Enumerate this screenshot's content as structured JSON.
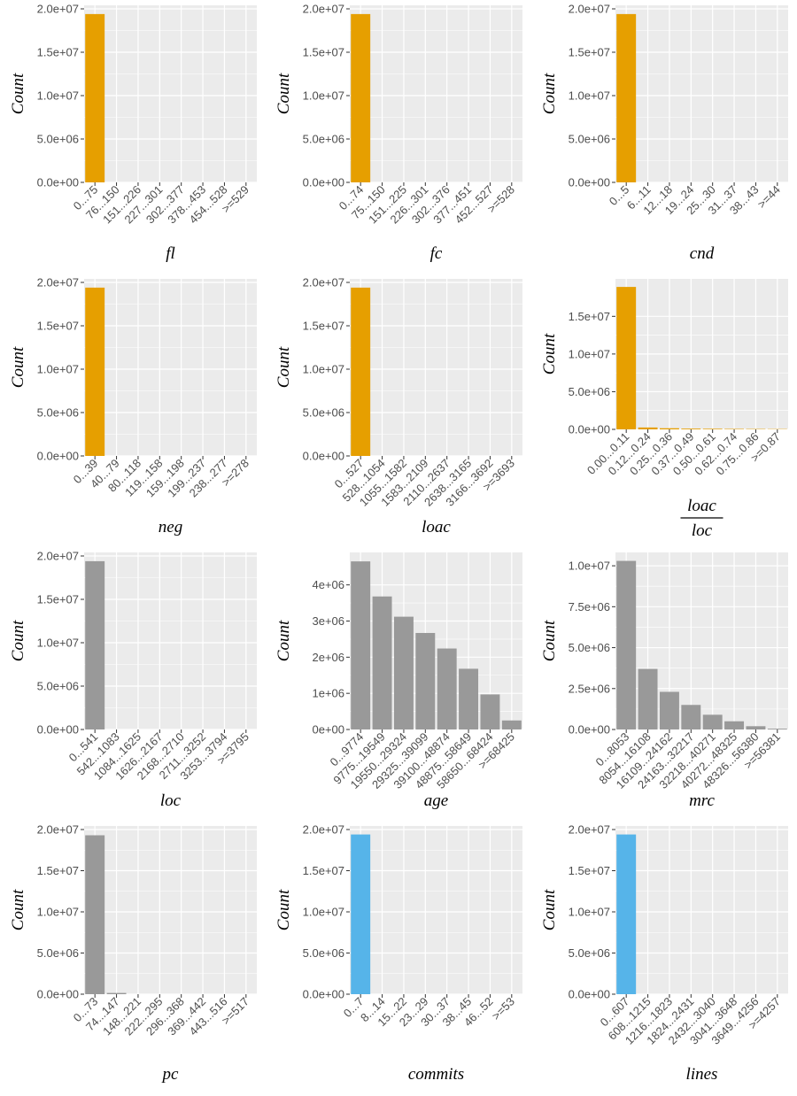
{
  "ylabel": "Count",
  "colors": {
    "orange": "#E69F00",
    "gray": "#999999",
    "blue": "#56B4E9",
    "panel_bg": "#EBEBEB",
    "grid": "#FFFFFF"
  },
  "chart_data": [
    {
      "type": "bar",
      "xlabel": "fl",
      "ylabel": "Count",
      "color": "#E69F00",
      "categories": [
        "0...75",
        "76...150",
        "151...226",
        "227...301",
        "302...377",
        "378...453",
        "454...528",
        ">=529"
      ],
      "values": [
        19400000,
        0,
        0,
        0,
        0,
        0,
        0,
        0
      ],
      "ylim": [
        0,
        20000000
      ],
      "yticks": [
        0,
        5000000,
        10000000,
        15000000,
        20000000
      ],
      "ytick_labels": [
        "0.0e+00",
        "5.0e+06",
        "1.0e+07",
        "1.5e+07",
        "2.0e+07"
      ]
    },
    {
      "type": "bar",
      "xlabel": "fc",
      "ylabel": "Count",
      "color": "#E69F00",
      "categories": [
        "0...74",
        "75...150",
        "151...225",
        "226...301",
        "302...376",
        "377...451",
        "452...527",
        ">=528"
      ],
      "values": [
        19400000,
        0,
        0,
        0,
        0,
        0,
        0,
        0
      ],
      "ylim": [
        0,
        20000000
      ],
      "yticks": [
        0,
        5000000,
        10000000,
        15000000,
        20000000
      ],
      "ytick_labels": [
        "0.0e+00",
        "5.0e+06",
        "1.0e+07",
        "1.5e+07",
        "2.0e+07"
      ]
    },
    {
      "type": "bar",
      "xlabel": "cnd",
      "ylabel": "Count",
      "color": "#E69F00",
      "categories": [
        "0...5",
        "6...11",
        "12...18",
        "19...24",
        "25...30",
        "31...37",
        "38...43",
        ">=44"
      ],
      "values": [
        19400000,
        0,
        0,
        0,
        0,
        0,
        0,
        0
      ],
      "ylim": [
        0,
        20000000
      ],
      "yticks": [
        0,
        5000000,
        10000000,
        15000000,
        20000000
      ],
      "ytick_labels": [
        "0.0e+00",
        "5.0e+06",
        "1.0e+07",
        "1.5e+07",
        "2.0e+07"
      ]
    },
    {
      "type": "bar",
      "xlabel": "neg",
      "ylabel": "Count",
      "color": "#E69F00",
      "categories": [
        "0...39",
        "40...79",
        "80...118",
        "119...158",
        "159...198",
        "199...237",
        "238...277",
        ">=278"
      ],
      "values": [
        19400000,
        0,
        0,
        0,
        0,
        0,
        0,
        0
      ],
      "ylim": [
        0,
        20000000
      ],
      "yticks": [
        0,
        5000000,
        10000000,
        15000000,
        20000000
      ],
      "ytick_labels": [
        "0.0e+00",
        "5.0e+06",
        "1.0e+07",
        "1.5e+07",
        "2.0e+07"
      ]
    },
    {
      "type": "bar",
      "xlabel": "loac",
      "ylabel": "Count",
      "color": "#E69F00",
      "categories": [
        "0...527",
        "528...1054",
        "1055...1582",
        "1583...2109",
        "2110...2637",
        "2638...3165",
        "3166...3692",
        ">=3693"
      ],
      "values": [
        19400000,
        0,
        0,
        0,
        0,
        0,
        0,
        0
      ],
      "ylim": [
        0,
        20000000
      ],
      "yticks": [
        0,
        5000000,
        10000000,
        15000000,
        20000000
      ],
      "ytick_labels": [
        "0.0e+00",
        "5.0e+06",
        "1.0e+07",
        "1.5e+07",
        "2.0e+07"
      ]
    },
    {
      "type": "bar",
      "xlabel": "loac",
      "xlabel_denominator": "loc",
      "ylabel": "Count",
      "color": "#E69F00",
      "categories": [
        "0.00...0.11",
        "0.12...0.24",
        "0.25...0.36",
        "0.37...0.49",
        "0.50...0.61",
        "0.62...0.74",
        "0.75...0.86",
        ">=0.87"
      ],
      "values": [
        18900000,
        250000,
        150000,
        100000,
        80000,
        60000,
        50000,
        40000
      ],
      "ylim": [
        0,
        19500000
      ],
      "yticks": [
        0,
        5000000,
        10000000,
        15000000
      ],
      "ytick_labels": [
        "0.0e+00",
        "5.0e+06",
        "1.0e+07",
        "1.5e+07"
      ]
    },
    {
      "type": "bar",
      "xlabel": "loc",
      "ylabel": "Count",
      "color": "#999999",
      "categories": [
        "0...541",
        "542...1083",
        "1084...1625",
        "1626...2167",
        "2168...2710",
        "2711...3252",
        "3253...3794",
        ">=3795"
      ],
      "values": [
        19400000,
        0,
        0,
        0,
        0,
        0,
        0,
        0
      ],
      "ylim": [
        0,
        20000000
      ],
      "yticks": [
        0,
        5000000,
        10000000,
        15000000,
        20000000
      ],
      "ytick_labels": [
        "0.0e+00",
        "5.0e+06",
        "1.0e+07",
        "1.5e+07",
        "2.0e+07"
      ]
    },
    {
      "type": "bar",
      "xlabel": "age",
      "ylabel": "Count",
      "color": "#999999",
      "categories": [
        "0...9774",
        "9775...19549",
        "19550...29324",
        "29325...39099",
        "39100...48874",
        "48875...58649",
        "58650...68424",
        ">=68425"
      ],
      "values": [
        4650000,
        3680000,
        3120000,
        2670000,
        2240000,
        1680000,
        970000,
        250000
      ],
      "ylim": [
        0,
        4800000
      ],
      "yticks": [
        0,
        1000000,
        2000000,
        3000000,
        4000000
      ],
      "ytick_labels": [
        "0e+00",
        "1e+06",
        "2e+06",
        "3e+06",
        "4e+06"
      ]
    },
    {
      "type": "bar",
      "xlabel": "mrc",
      "ylabel": "Count",
      "color": "#999999",
      "categories": [
        "0...8053",
        "8054...16108",
        "16109...24162",
        "24163...32217",
        "32218...40271",
        "40272...48325",
        "48326...56380",
        ">=56381"
      ],
      "values": [
        10300000,
        3700000,
        2300000,
        1500000,
        900000,
        500000,
        200000,
        50000
      ],
      "ylim": [
        0,
        10600000
      ],
      "yticks": [
        0,
        2500000,
        5000000,
        7500000,
        10000000
      ],
      "ytick_labels": [
        "0.0e+00",
        "2.5e+06",
        "5.0e+06",
        "7.5e+06",
        "1.0e+07"
      ]
    },
    {
      "type": "bar",
      "xlabel": "pc",
      "ylabel": "Count",
      "color": "#999999",
      "categories": [
        "0...73",
        "74...147",
        "148...221",
        "222...295",
        "296...368",
        "369...442",
        "443...516",
        ">=517"
      ],
      "values": [
        19300000,
        150000,
        0,
        0,
        0,
        0,
        0,
        0
      ],
      "ylim": [
        0,
        20000000
      ],
      "yticks": [
        0,
        5000000,
        10000000,
        15000000,
        20000000
      ],
      "ytick_labels": [
        "0.0e+00",
        "5.0e+06",
        "1.0e+07",
        "1.5e+07",
        "2.0e+07"
      ]
    },
    {
      "type": "bar",
      "xlabel": "commits",
      "ylabel": "Count",
      "color": "#56B4E9",
      "categories": [
        "0...7",
        "8...14",
        "15...22",
        "23...29",
        "30...37",
        "38...45",
        "46...52",
        ">=53"
      ],
      "values": [
        19400000,
        0,
        0,
        0,
        0,
        0,
        0,
        0
      ],
      "ylim": [
        0,
        20000000
      ],
      "yticks": [
        0,
        5000000,
        10000000,
        15000000,
        20000000
      ],
      "ytick_labels": [
        "0.0e+00",
        "5.0e+06",
        "1.0e+07",
        "1.5e+07",
        "2.0e+07"
      ]
    },
    {
      "type": "bar",
      "xlabel": "lines",
      "ylabel": "Count",
      "color": "#56B4E9",
      "categories": [
        "0...607",
        "608...1215",
        "1216...1823",
        "1824...2431",
        "2432...3040",
        "3041...3648",
        "3649...4256",
        ">=4257"
      ],
      "values": [
        19400000,
        0,
        0,
        0,
        0,
        0,
        0,
        0
      ],
      "ylim": [
        0,
        20000000
      ],
      "yticks": [
        0,
        5000000,
        10000000,
        15000000,
        20000000
      ],
      "ytick_labels": [
        "0.0e+00",
        "5.0e+06",
        "1.0e+07",
        "1.5e+07",
        "2.0e+07"
      ]
    }
  ]
}
